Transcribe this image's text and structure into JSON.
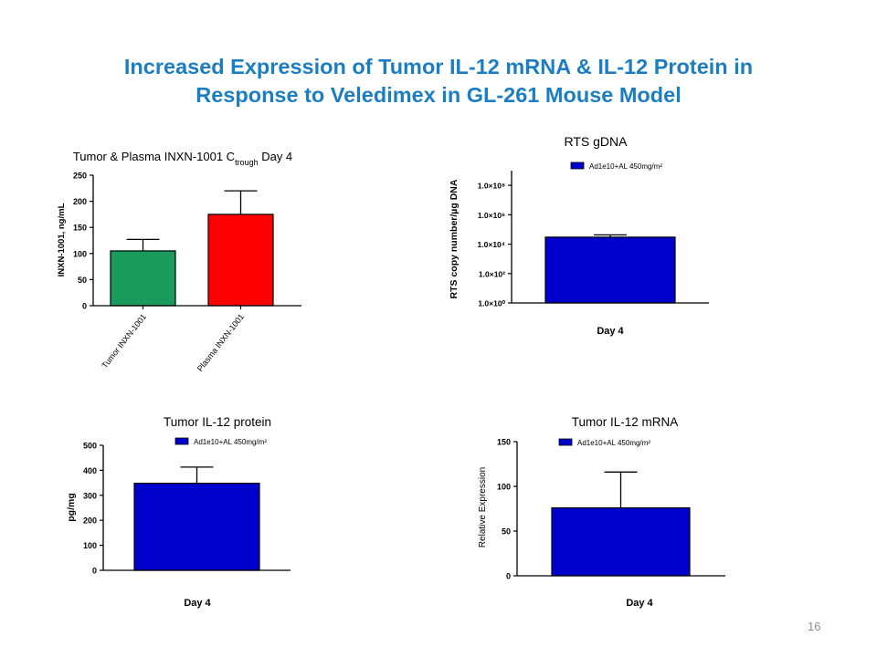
{
  "title": {
    "line1": "Increased Expression of Tumor IL-12 mRNA & IL-12 Protein in",
    "line2": "Response to Veledimex in GL-261 Mouse Model"
  },
  "page_number": "16",
  "colors": {
    "title": "#1c7ec2",
    "tumor_bar": "#1a9a5c",
    "plasma_bar": "#ff0000",
    "blue_bar": "#0000cc"
  },
  "chart_data": [
    {
      "type": "bar",
      "title": "Tumor & Plasma INXN-1001 C",
      "title_sub": "trough",
      "title_suffix": " Day 4",
      "ylabel": "INXN-1001, ng/mL",
      "xlabel": "",
      "ylim": [
        0,
        250
      ],
      "yticks": [
        "0",
        "50",
        "100",
        "150",
        "200",
        "250"
      ],
      "categories": [
        "Tumor INXN-1001",
        "Plasma INXN-1001"
      ],
      "values": [
        105,
        175
      ],
      "errors": [
        22,
        45
      ],
      "grid": false,
      "legend": ""
    },
    {
      "type": "bar",
      "title": "RTS gDNA",
      "ylabel": "RTS copy number/µg DNA",
      "xlabel": "Day 4",
      "yscale": "log",
      "ylim": [
        1,
        1000000000
      ],
      "yticks": [
        "1.0×10⁰",
        "1.0×10²",
        "1.0×10⁴",
        "1.0×10⁶",
        "1.0×10⁸"
      ],
      "categories": [
        ""
      ],
      "values": [
        30000
      ],
      "errors": [
        13000
      ],
      "grid": false,
      "legend": "top-right",
      "legend_label": "Ad1e10+AL 450mg/m²"
    },
    {
      "type": "bar",
      "title": "Tumor IL-12 protein",
      "ylabel": "pg/mg",
      "xlabel": "Day 4",
      "ylim": [
        0,
        500
      ],
      "yticks": [
        "0",
        "100",
        "200",
        "300",
        "400",
        "500"
      ],
      "categories": [
        ""
      ],
      "values": [
        348
      ],
      "errors": [
        65
      ],
      "grid": false,
      "legend": "top-right",
      "legend_label": "Ad1e10+AL 450mg/m²"
    },
    {
      "type": "bar",
      "title": "Tumor IL-12 mRNA",
      "ylabel": "Relative Expression",
      "xlabel": "Day 4",
      "ylim": [
        0,
        150
      ],
      "yticks": [
        "0",
        "50",
        "100",
        "150"
      ],
      "categories": [
        ""
      ],
      "values": [
        76
      ],
      "errors": [
        40
      ],
      "grid": false,
      "legend": "top-right",
      "legend_label": "Ad1e10+AL 450mg/m²"
    }
  ]
}
